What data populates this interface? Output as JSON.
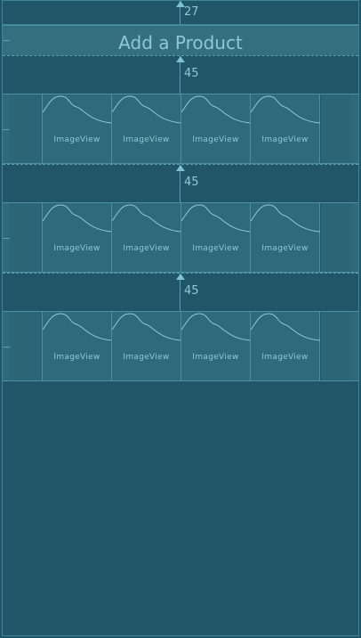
{
  "top_gap": "27",
  "title": "Add a Product",
  "rows": [
    {
      "gap": "45",
      "cells": [
        {
          "label": "ImageView"
        },
        {
          "label": "ImageView"
        },
        {
          "label": "ImageView"
        },
        {
          "label": "ImageView"
        }
      ]
    },
    {
      "gap": "45",
      "cells": [
        {
          "label": "ImageView"
        },
        {
          "label": "ImageView"
        },
        {
          "label": "ImageView"
        },
        {
          "label": "ImageView"
        }
      ]
    },
    {
      "gap": "45",
      "cells": [
        {
          "label": "ImageView"
        },
        {
          "label": "ImageView"
        },
        {
          "label": "ImageView"
        },
        {
          "label": "ImageView"
        }
      ]
    }
  ]
}
